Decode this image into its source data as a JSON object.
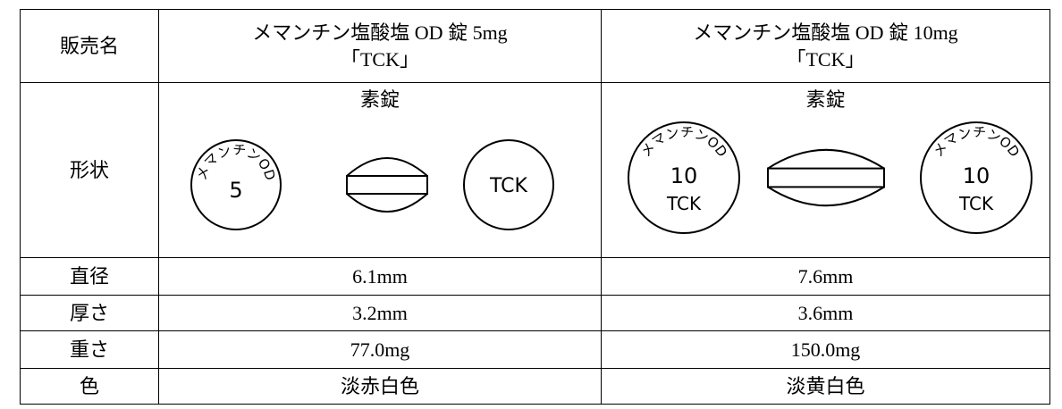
{
  "table": {
    "header": {
      "label": "販売名",
      "products": [
        {
          "name": "メマンチン塩酸塩 OD 錠 5mg",
          "suffix": "「TCK」"
        },
        {
          "name": "メマンチン塩酸塩 OD 錠 10mg",
          "suffix": "「TCK」"
        }
      ]
    },
    "shape": {
      "label": "形状",
      "cells": [
        {
          "kind": "素錠",
          "front": {
            "arc": "メマンチンOD",
            "center": "5"
          },
          "back": {
            "center": "TCK"
          }
        },
        {
          "kind": "素錠",
          "front": {
            "arc": "メマンチンOD",
            "center": "10",
            "bottom": "TCK"
          },
          "back": {
            "arc": "メマンチンOD",
            "center": "10",
            "bottom": "TCK"
          }
        }
      ]
    },
    "rows": [
      {
        "label": "直径",
        "values": [
          "6.1mm",
          "7.6mm"
        ]
      },
      {
        "label": "厚さ",
        "values": [
          "3.2mm",
          "3.6mm"
        ]
      },
      {
        "label": "重さ",
        "values": [
          "77.0mg",
          "150.0mg"
        ]
      },
      {
        "label": "色",
        "values": [
          "淡赤白色",
          "淡黄白色"
        ]
      }
    ]
  }
}
